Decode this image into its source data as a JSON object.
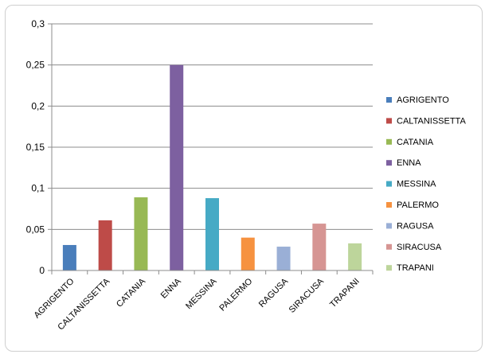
{
  "chart_data": {
    "type": "bar",
    "title": "",
    "xlabel": "",
    "ylabel": "",
    "categories": [
      "AGRIGENTO",
      "CALTANISSETTA",
      "CATANIA",
      "ENNA",
      "MESSINA",
      "PALERMO",
      "RAGUSA",
      "SIRACUSA",
      "TRAPANI"
    ],
    "values": [
      0.031,
      0.061,
      0.089,
      0.25,
      0.088,
      0.04,
      0.029,
      0.057,
      0.033
    ],
    "colors": [
      "#4a7ebb",
      "#be4b48",
      "#98b954",
      "#7d60a0",
      "#46aac5",
      "#f69240",
      "#9aafd6",
      "#d69593",
      "#bdd59b"
    ],
    "ylim": [
      0,
      0.3
    ],
    "yticks": [
      "0",
      "0,05",
      "0,1",
      "0,15",
      "0,2",
      "0,25",
      "0,3"
    ],
    "ytick_values": [
      0,
      0.05,
      0.1,
      0.15,
      0.2,
      0.25,
      0.3
    ],
    "grid": true,
    "legend": {
      "placement": "right",
      "entries": [
        "AGRIGENTO",
        "CALTANISSETTA",
        "CATANIA",
        "ENNA",
        "MESSINA",
        "PALERMO",
        "RAGUSA",
        "SIRACUSA",
        "TRAPANI"
      ]
    }
  }
}
